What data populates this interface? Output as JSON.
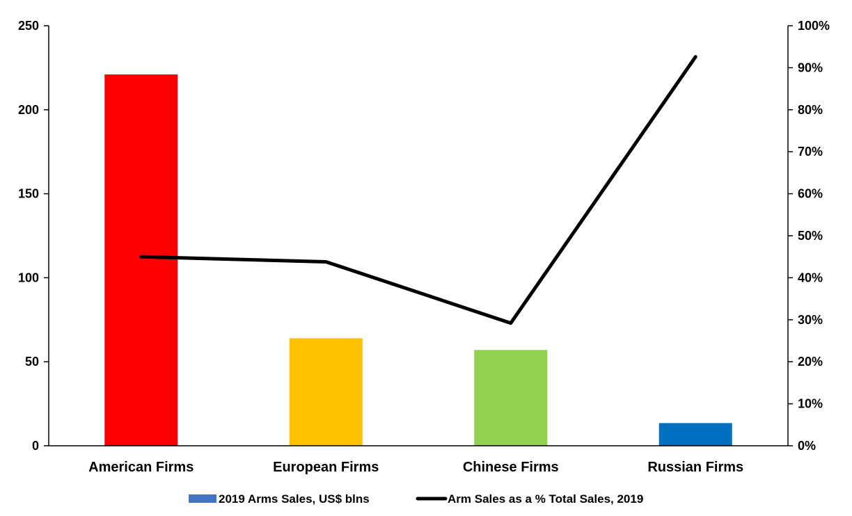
{
  "chart_data": {
    "type": "bar",
    "categories": [
      "American Firms",
      "European Firms",
      "Chinese Firms",
      "Russian Firms"
    ],
    "series": [
      {
        "name": "2019 Arms Sales, US$ blns",
        "type": "bar",
        "axis": "left",
        "values": [
          221,
          64,
          57,
          13.5
        ],
        "colors": [
          "#FF0000",
          "#FFC000",
          "#92D050",
          "#0070C0"
        ],
        "legend_color": "#4472C4"
      },
      {
        "name": "Arm Sales as a % Total Sales, 2019",
        "type": "line",
        "axis": "right",
        "values": [
          45,
          43.8,
          29.2,
          92.6
        ],
        "color": "#000000"
      }
    ],
    "y_left": {
      "range": [
        0,
        250
      ],
      "ticks": [
        0,
        50,
        100,
        150,
        200,
        250
      ],
      "tick_labels": [
        "0",
        "50",
        "100",
        "150",
        "200",
        "250"
      ]
    },
    "y_right": {
      "range": [
        0,
        100
      ],
      "ticks": [
        0,
        10,
        20,
        30,
        40,
        50,
        60,
        70,
        80,
        90,
        100
      ],
      "tick_labels": [
        "0%",
        "10%",
        "20%",
        "30%",
        "40%",
        "50%",
        "60%",
        "70%",
        "80%",
        "90%",
        "100%"
      ]
    },
    "grid": false,
    "legend_position": "bottom"
  }
}
